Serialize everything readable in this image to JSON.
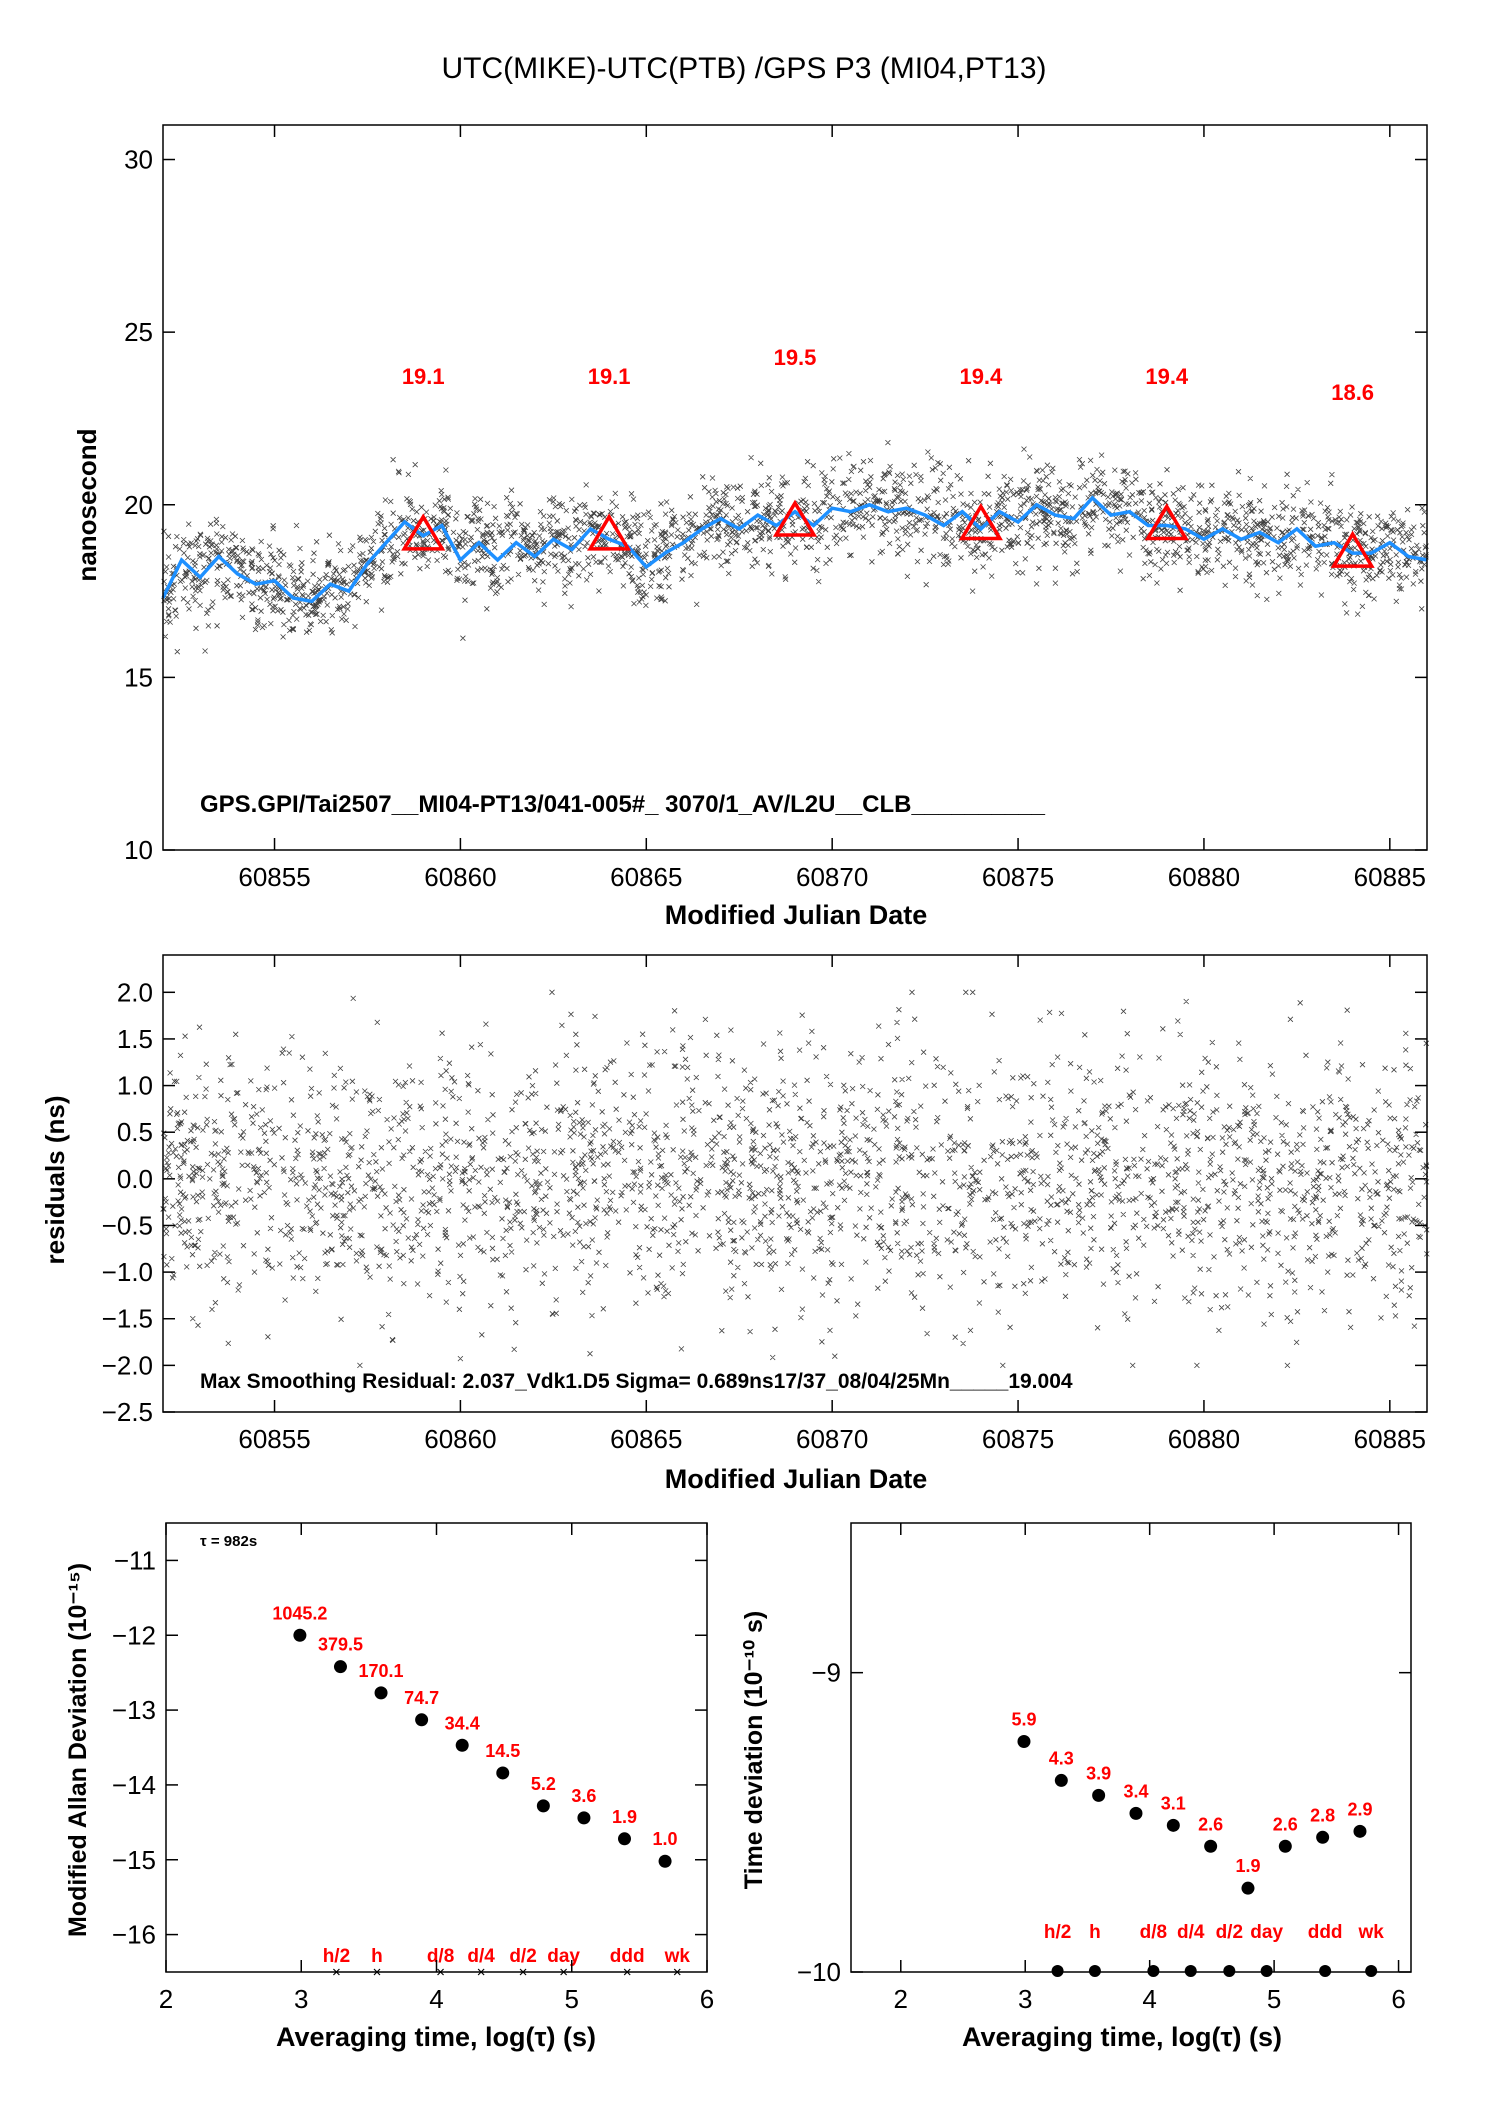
{
  "title": "UTC(MIKE)-UTC(PTB)  /GPS  P3  (MI04,PT13)",
  "colors": {
    "smooth": "#1e90ff",
    "marker": "#ff0000",
    "points": "#000000"
  },
  "chart_data": [
    {
      "id": "main",
      "type": "scatter",
      "xlabel": "Modified Julian Date",
      "ylabel": "nanosecond",
      "xlim": [
        60852,
        60886
      ],
      "ylim": [
        10,
        31
      ],
      "xticks": [
        60855,
        60860,
        60865,
        60870,
        60875,
        60880,
        60885
      ],
      "yticks": [
        10,
        15,
        20,
        25,
        30
      ],
      "annotation": "GPS.GPI/Tai2507__MI04-PT13/041-005#_  3070/1_AV/L2U__CLB__________",
      "smooth_line": {
        "x": [
          60852,
          60852.5,
          60853,
          60853.5,
          60854,
          60854.5,
          60855,
          60855.5,
          60856,
          60856.5,
          60857,
          60857.5,
          60858,
          60858.5,
          60859,
          60859.5,
          60860,
          60860.5,
          60861,
          60861.5,
          60862,
          60862.5,
          60863,
          60863.5,
          60864,
          60864.5,
          60865,
          60865.5,
          60866,
          60866.5,
          60867,
          60867.5,
          60868,
          60868.5,
          60869,
          60869.5,
          60870,
          60870.5,
          60871,
          60871.5,
          60872,
          60872.5,
          60873,
          60873.5,
          60874,
          60874.5,
          60875,
          60875.5,
          60876,
          60876.5,
          60877,
          60877.5,
          60878,
          60878.5,
          60879,
          60879.5,
          60880,
          60880.5,
          60881,
          60881.5,
          60882,
          60882.5,
          60883,
          60883.5,
          60884,
          60884.5,
          60885,
          60885.5,
          60886
        ],
        "y": [
          17.3,
          18.4,
          17.9,
          18.5,
          18.0,
          17.7,
          17.8,
          17.3,
          17.2,
          17.7,
          17.5,
          18.3,
          18.9,
          19.5,
          19.1,
          19.4,
          18.4,
          18.9,
          18.4,
          18.9,
          18.5,
          19.0,
          18.7,
          19.3,
          19.0,
          18.8,
          18.2,
          18.6,
          18.9,
          19.3,
          19.6,
          19.3,
          19.7,
          19.4,
          19.8,
          19.4,
          19.9,
          19.8,
          20.0,
          19.8,
          19.9,
          19.7,
          19.4,
          19.8,
          19.3,
          19.8,
          19.5,
          20.0,
          19.7,
          19.6,
          20.2,
          19.7,
          19.8,
          19.4,
          19.4,
          19.3,
          19.0,
          19.3,
          19.0,
          19.2,
          18.9,
          19.3,
          18.8,
          18.9,
          18.6,
          18.6,
          18.9,
          18.5,
          18.4
        ]
      },
      "markers": [
        {
          "x": 60859,
          "y": 19.1,
          "label": "19.1"
        },
        {
          "x": 60864,
          "y": 19.1,
          "label": "19.1"
        },
        {
          "x": 60869,
          "y": 19.5,
          "label": "19.5"
        },
        {
          "x": 60874,
          "y": 19.4,
          "label": "19.4"
        },
        {
          "x": 60879,
          "y": 19.4,
          "label": "19.4"
        },
        {
          "x": 60884,
          "y": 18.6,
          "label": "18.6"
        }
      ],
      "scatter": {
        "n": 2600,
        "noise_sd": 0.69,
        "y_min": 15.6,
        "y_max": 21.8
      }
    },
    {
      "id": "residuals",
      "type": "scatter",
      "xlabel": "Modified Julian Date",
      "ylabel": "residuals (ns)",
      "xlim": [
        60852,
        60886
      ],
      "ylim": [
        -2.5,
        2.4
      ],
      "xticks": [
        60855,
        60860,
        60865,
        60870,
        60875,
        60880,
        60885
      ],
      "yticks": [
        -2.5,
        -2.0,
        -1.5,
        -1.0,
        -0.5,
        0.0,
        0.5,
        1.0,
        1.5,
        2.0
      ],
      "ytick_labels": [
        "−2.5",
        "−2.0",
        "−1.5",
        "−1.0",
        "−0.5",
        "0.0",
        "0.5",
        "1.0",
        "1.5",
        "2.0"
      ],
      "annotation": "Max Smoothing Residual: 2.037_Vdk1.D5  Sigma= 0.689ns17/37_08/04/25Mn_____19.004",
      "scatter": {
        "n": 2600,
        "noise_sd": 0.689,
        "y_min": -2.0,
        "y_max": 2.0
      }
    },
    {
      "id": "mdev",
      "type": "scatter",
      "xlabel": "Averaging time, log(τ) (s)",
      "ylabel": "Modified Allan Deviation (10⁻¹⁵)",
      "xlim": [
        2,
        6
      ],
      "ylim": [
        -16.5,
        -10.5
      ],
      "xticks": [
        2,
        3,
        4,
        5,
        6
      ],
      "yticks": [
        -16,
        -15,
        -14,
        -13,
        -12,
        -11
      ],
      "ytick_labels": [
        "−16",
        "−15",
        "−14",
        "−13",
        "−12",
        "−11"
      ],
      "tau_note": "τ = 982s",
      "points": [
        {
          "x": 2.99,
          "y": -12.0,
          "label": "1045.2"
        },
        {
          "x": 3.29,
          "y": -12.42,
          "label": "379.5"
        },
        {
          "x": 3.59,
          "y": -12.77,
          "label": "170.1"
        },
        {
          "x": 3.89,
          "y": -13.13,
          "label": "74.7"
        },
        {
          "x": 4.19,
          "y": -13.47,
          "label": "34.4"
        },
        {
          "x": 4.49,
          "y": -13.84,
          "label": "14.5"
        },
        {
          "x": 4.79,
          "y": -14.28,
          "label": "5.2"
        },
        {
          "x": 5.09,
          "y": -14.44,
          "label": "3.6"
        },
        {
          "x": 5.39,
          "y": -14.72,
          "label": "1.9"
        },
        {
          "x": 5.69,
          "y": -15.02,
          "label": "1.0"
        }
      ],
      "bottom_markers": [
        {
          "x": 3.26,
          "label": "h/2"
        },
        {
          "x": 3.56,
          "label": "h"
        },
        {
          "x": 4.03,
          "label": "d/8"
        },
        {
          "x": 4.33,
          "label": "d/4"
        },
        {
          "x": 4.64,
          "label": "d/2"
        },
        {
          "x": 4.94,
          "label": "day"
        },
        {
          "x": 5.41,
          "label": "ddd"
        },
        {
          "x": 5.78,
          "label": "wk"
        }
      ]
    },
    {
      "id": "tdev",
      "type": "scatter",
      "xlabel": "Averaging time, log(τ) (s)",
      "ylabel": "Time deviation (10⁻¹⁰ s)",
      "xlim": [
        1.6,
        6.1
      ],
      "ylim": [
        -10,
        -8.5
      ],
      "xticks": [
        2,
        3,
        4,
        5,
        6
      ],
      "yticks": [
        -10,
        -9
      ],
      "ytick_labels": [
        "−10",
        "−9"
      ],
      "points": [
        {
          "x": 2.99,
          "y": -9.23,
          "label": "5.9"
        },
        {
          "x": 3.29,
          "y": -9.36,
          "label": "4.3"
        },
        {
          "x": 3.59,
          "y": -9.41,
          "label": "3.9"
        },
        {
          "x": 3.89,
          "y": -9.47,
          "label": "3.4"
        },
        {
          "x": 4.19,
          "y": -9.51,
          "label": "3.1"
        },
        {
          "x": 4.49,
          "y": -9.58,
          "label": "2.6"
        },
        {
          "x": 4.79,
          "y": -9.72,
          "label": "1.9"
        },
        {
          "x": 5.09,
          "y": -9.58,
          "label": "2.6"
        },
        {
          "x": 5.39,
          "y": -9.55,
          "label": "2.8"
        },
        {
          "x": 5.69,
          "y": -9.53,
          "label": "2.9"
        }
      ],
      "bottom_markers": [
        {
          "x": 3.26,
          "label": "h/2"
        },
        {
          "x": 3.56,
          "label": "h"
        },
        {
          "x": 4.03,
          "label": "d/8"
        },
        {
          "x": 4.33,
          "label": "d/4"
        },
        {
          "x": 4.64,
          "label": "d/2"
        },
        {
          "x": 4.94,
          "label": "day"
        },
        {
          "x": 5.41,
          "label": "ddd"
        },
        {
          "x": 5.78,
          "label": "wk"
        }
      ]
    }
  ]
}
